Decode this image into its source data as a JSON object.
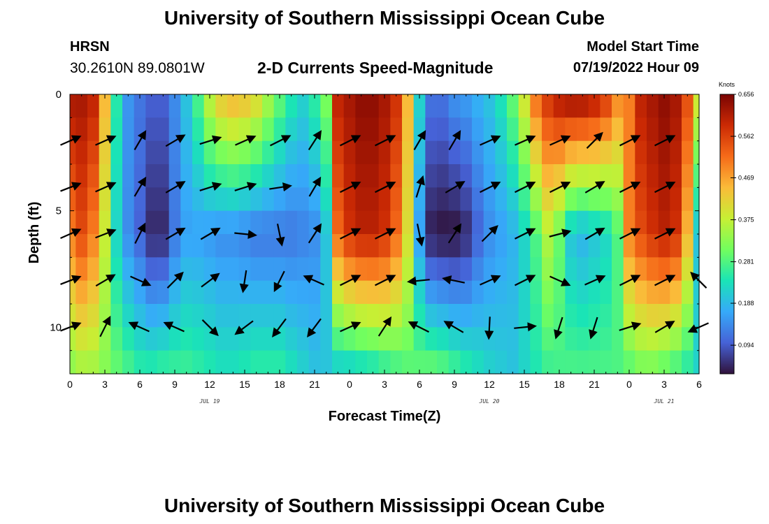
{
  "header": {
    "title": "University of Southern Mississippi Ocean Cube",
    "station": "HRSN",
    "coords": "30.2610N  89.0801W",
    "subtitle": "2-D Currents Speed-Magnitude",
    "model_start_label": "Model Start Time",
    "model_start_value": "07/19/2022 Hour 09"
  },
  "footer": {
    "title": "University of Southern Mississippi Ocean Cube"
  },
  "colorbar": {
    "unit": "Knots",
    "ticks": [
      "0.656",
      "0.562",
      "0.469",
      "0.375",
      "0.281",
      "0.188",
      "0.094"
    ],
    "colors": [
      "#30123b",
      "#4662d7",
      "#36aaf9",
      "#1ae4b6",
      "#72fe5e",
      "#c7ef34",
      "#fabb39",
      "#f66b19",
      "#cb2a04",
      "#7a0403"
    ]
  },
  "chart_data": {
    "type": "heatmap",
    "title": "2-D Currents Speed-Magnitude",
    "xlabel": "Forecast Time(Z)",
    "ylabel": "Depth (ft)",
    "x_tick_labels": [
      "0",
      "3",
      "6",
      "9",
      "12",
      "15",
      "18",
      "21",
      "0",
      "3",
      "6",
      "9",
      "12",
      "15",
      "18",
      "21",
      "0",
      "3",
      "6"
    ],
    "day_labels": [
      {
        "label": "JUL 19",
        "hour": 12
      },
      {
        "label": "JUL 20",
        "hour": 36
      },
      {
        "label": "JUL 21",
        "hour": 51
      }
    ],
    "y_tick_labels": [
      "0",
      "5",
      "10"
    ],
    "y_ticks": [
      0,
      5,
      10
    ],
    "xlim": [
      0,
      54
    ],
    "ylim": [
      0,
      12
    ],
    "color_range": [
      0.03,
      0.656
    ],
    "depth_rows": [
      0,
      1,
      2,
      3,
      4,
      5,
      6,
      7,
      8,
      9,
      10,
      11,
      12
    ],
    "time_columns": [
      0,
      1,
      2,
      3,
      4,
      5,
      6,
      7,
      8,
      9,
      10,
      11,
      12,
      13,
      14,
      15,
      16,
      17,
      18,
      19,
      20,
      21,
      22,
      23,
      24,
      25,
      26,
      27,
      28,
      29,
      30,
      31,
      32,
      33,
      34,
      35,
      36,
      37,
      38,
      39,
      40,
      41,
      42,
      43,
      44,
      45,
      46,
      47,
      48,
      49,
      50,
      51,
      52,
      53,
      54
    ],
    "speed_profiles": [
      {
        "name": "surface",
        "values": [
          0.62,
          0.62,
          0.6,
          0.45,
          0.25,
          0.15,
          0.12,
          0.1,
          0.1,
          0.14,
          0.2,
          0.28,
          0.38,
          0.44,
          0.46,
          0.45,
          0.42,
          0.36,
          0.3,
          0.25,
          0.22,
          0.26,
          0.32,
          0.6,
          0.62,
          0.64,
          0.64,
          0.62,
          0.58,
          0.45,
          0.22,
          0.12,
          0.12,
          0.15,
          0.16,
          0.18,
          0.2,
          0.24,
          0.3,
          0.4,
          0.52,
          0.58,
          0.62,
          0.64,
          0.64,
          0.62,
          0.58,
          0.5,
          0.5,
          0.6,
          0.62,
          0.64,
          0.62,
          0.55,
          0.4
        ]
      },
      {
        "name": "middle",
        "values": [
          0.5,
          0.55,
          0.5,
          0.38,
          0.22,
          0.14,
          0.1,
          0.05,
          0.05,
          0.12,
          0.16,
          0.16,
          0.15,
          0.14,
          0.14,
          0.13,
          0.12,
          0.12,
          0.12,
          0.12,
          0.13,
          0.14,
          0.2,
          0.52,
          0.58,
          0.6,
          0.6,
          0.58,
          0.52,
          0.4,
          0.16,
          0.04,
          0.03,
          0.03,
          0.05,
          0.1,
          0.14,
          0.16,
          0.18,
          0.22,
          0.28,
          0.36,
          0.3,
          0.2,
          0.18,
          0.2,
          0.22,
          0.28,
          0.5,
          0.55,
          0.58,
          0.6,
          0.58,
          0.45,
          0.2
        ]
      },
      {
        "name": "bottom",
        "values": [
          0.32,
          0.34,
          0.34,
          0.32,
          0.3,
          0.28,
          0.26,
          0.26,
          0.27,
          0.27,
          0.27,
          0.26,
          0.25,
          0.24,
          0.24,
          0.25,
          0.26,
          0.26,
          0.26,
          0.24,
          0.22,
          0.2,
          0.2,
          0.2,
          0.2,
          0.21,
          0.22,
          0.24,
          0.26,
          0.28,
          0.3,
          0.31,
          0.3,
          0.28,
          0.26,
          0.24,
          0.22,
          0.21,
          0.2,
          0.22,
          0.24,
          0.26,
          0.27,
          0.28,
          0.28,
          0.28,
          0.28,
          0.28,
          0.28,
          0.3,
          0.3,
          0.28,
          0.26,
          0.24,
          0.22
        ]
      }
    ],
    "vectors": [
      {
        "t": 0,
        "d": 2,
        "u": 0.9,
        "v": 0.4
      },
      {
        "t": 0,
        "d": 4,
        "u": 0.9,
        "v": 0.35
      },
      {
        "t": 0,
        "d": 6,
        "u": 0.9,
        "v": 0.4
      },
      {
        "t": 0,
        "d": 8,
        "u": 0.9,
        "v": 0.35
      },
      {
        "t": 0,
        "d": 10,
        "u": 0.9,
        "v": 0.35
      },
      {
        "t": 3,
        "d": 2,
        "u": 0.9,
        "v": 0.4
      },
      {
        "t": 3,
        "d": 4,
        "u": 0.9,
        "v": 0.4
      },
      {
        "t": 3,
        "d": 6,
        "u": 0.9,
        "v": 0.35
      },
      {
        "t": 3,
        "d": 8,
        "u": 0.85,
        "v": 0.5
      },
      {
        "t": 3,
        "d": 10,
        "u": 0.45,
        "v": 0.9
      },
      {
        "t": 6,
        "d": 2,
        "u": 0.5,
        "v": 0.85
      },
      {
        "t": 6,
        "d": 4,
        "u": 0.5,
        "v": 0.85
      },
      {
        "t": 6,
        "d": 6,
        "u": 0.45,
        "v": 0.9
      },
      {
        "t": 6,
        "d": 8,
        "u": 0.9,
        "v": -0.4
      },
      {
        "t": 6,
        "d": 10,
        "u": -0.9,
        "v": 0.4
      },
      {
        "t": 9,
        "d": 2,
        "u": 0.85,
        "v": 0.5
      },
      {
        "t": 9,
        "d": 4,
        "u": 0.85,
        "v": 0.5
      },
      {
        "t": 9,
        "d": 6,
        "u": 0.85,
        "v": 0.5
      },
      {
        "t": 9,
        "d": 8,
        "u": 0.7,
        "v": 0.7
      },
      {
        "t": 9,
        "d": 10,
        "u": -0.9,
        "v": 0.4
      },
      {
        "t": 12,
        "d": 2,
        "u": 0.95,
        "v": 0.3
      },
      {
        "t": 12,
        "d": 4,
        "u": 0.95,
        "v": 0.3
      },
      {
        "t": 12,
        "d": 6,
        "u": 0.85,
        "v": 0.5
      },
      {
        "t": 12,
        "d": 8,
        "u": 0.8,
        "v": 0.6
      },
      {
        "t": 12,
        "d": 10,
        "u": 0.7,
        "v": -0.7
      },
      {
        "t": 15,
        "d": 2,
        "u": 0.9,
        "v": 0.4
      },
      {
        "t": 15,
        "d": 4,
        "u": 0.95,
        "v": 0.3
      },
      {
        "t": 15,
        "d": 6,
        "u": 0.98,
        "v": -0.1
      },
      {
        "t": 15,
        "d": 8,
        "u": -0.15,
        "v": -0.98
      },
      {
        "t": 15,
        "d": 10,
        "u": -0.8,
        "v": -0.6
      },
      {
        "t": 18,
        "d": 2,
        "u": 0.9,
        "v": 0.45
      },
      {
        "t": 18,
        "d": 4,
        "u": 0.98,
        "v": 0.15
      },
      {
        "t": 18,
        "d": 6,
        "u": 0.2,
        "v": -0.98
      },
      {
        "t": 18,
        "d": 8,
        "u": -0.45,
        "v": -0.9
      },
      {
        "t": 18,
        "d": 10,
        "u": -0.6,
        "v": -0.8
      },
      {
        "t": 21,
        "d": 2,
        "u": 0.55,
        "v": 0.85
      },
      {
        "t": 21,
        "d": 4,
        "u": 0.5,
        "v": 0.85
      },
      {
        "t": 21,
        "d": 6,
        "u": 0.55,
        "v": 0.85
      },
      {
        "t": 21,
        "d": 8,
        "u": -0.9,
        "v": 0.4
      },
      {
        "t": 21,
        "d": 10,
        "u": -0.6,
        "v": -0.8
      },
      {
        "t": 24,
        "d": 2,
        "u": 0.9,
        "v": 0.45
      },
      {
        "t": 24,
        "d": 4,
        "u": 0.9,
        "v": 0.45
      },
      {
        "t": 24,
        "d": 6,
        "u": 0.9,
        "v": 0.45
      },
      {
        "t": 24,
        "d": 8,
        "u": 0.9,
        "v": 0.45
      },
      {
        "t": 24,
        "d": 10,
        "u": 0.9,
        "v": 0.4
      },
      {
        "t": 27,
        "d": 2,
        "u": 0.9,
        "v": 0.45
      },
      {
        "t": 27,
        "d": 4,
        "u": 0.9,
        "v": 0.45
      },
      {
        "t": 27,
        "d": 6,
        "u": 0.9,
        "v": 0.45
      },
      {
        "t": 27,
        "d": 8,
        "u": 0.9,
        "v": 0.45
      },
      {
        "t": 27,
        "d": 10,
        "u": 0.55,
        "v": 0.85
      },
      {
        "t": 30,
        "d": 2,
        "u": 0.5,
        "v": 0.85
      },
      {
        "t": 30,
        "d": 4,
        "u": 0.3,
        "v": 0.95
      },
      {
        "t": 30,
        "d": 6,
        "u": 0.2,
        "v": -0.98
      },
      {
        "t": 30,
        "d": 8,
        "u": -0.98,
        "v": -0.1
      },
      {
        "t": 30,
        "d": 10,
        "u": -0.9,
        "v": 0.45
      },
      {
        "t": 33,
        "d": 2,
        "u": 0.5,
        "v": 0.85
      },
      {
        "t": 33,
        "d": 4,
        "u": 0.85,
        "v": 0.5
      },
      {
        "t": 33,
        "d": 6,
        "u": 0.55,
        "v": 0.85
      },
      {
        "t": 33,
        "d": 8,
        "u": -0.98,
        "v": 0.2
      },
      {
        "t": 33,
        "d": 10,
        "u": -0.85,
        "v": 0.5
      },
      {
        "t": 36,
        "d": 2,
        "u": 0.9,
        "v": 0.4
      },
      {
        "t": 36,
        "d": 4,
        "u": 0.9,
        "v": 0.45
      },
      {
        "t": 36,
        "d": 6,
        "u": 0.7,
        "v": 0.7
      },
      {
        "t": 36,
        "d": 8,
        "u": 0.9,
        "v": 0.4
      },
      {
        "t": 36,
        "d": 10,
        "u": -0.05,
        "v": -1.0
      },
      {
        "t": 39,
        "d": 2,
        "u": 0.9,
        "v": 0.4
      },
      {
        "t": 39,
        "d": 4,
        "u": 0.9,
        "v": 0.45
      },
      {
        "t": 39,
        "d": 6,
        "u": 0.9,
        "v": 0.45
      },
      {
        "t": 39,
        "d": 8,
        "u": 0.9,
        "v": 0.45
      },
      {
        "t": 39,
        "d": 10,
        "u": 0.98,
        "v": 0.1
      },
      {
        "t": 42,
        "d": 2,
        "u": 0.9,
        "v": 0.4
      },
      {
        "t": 42,
        "d": 4,
        "u": 0.9,
        "v": 0.45
      },
      {
        "t": 42,
        "d": 6,
        "u": 0.95,
        "v": 0.25
      },
      {
        "t": 42,
        "d": 8,
        "u": 0.9,
        "v": -0.4
      },
      {
        "t": 42,
        "d": 10,
        "u": -0.3,
        "v": -0.95
      },
      {
        "t": 45,
        "d": 2,
        "u": 0.7,
        "v": 0.7
      },
      {
        "t": 45,
        "d": 4,
        "u": 0.85,
        "v": 0.5
      },
      {
        "t": 45,
        "d": 6,
        "u": 0.85,
        "v": 0.5
      },
      {
        "t": 45,
        "d": 8,
        "u": 0.9,
        "v": 0.4
      },
      {
        "t": 45,
        "d": 10,
        "u": -0.3,
        "v": -0.95
      },
      {
        "t": 48,
        "d": 2,
        "u": 0.9,
        "v": 0.45
      },
      {
        "t": 48,
        "d": 4,
        "u": 0.9,
        "v": 0.45
      },
      {
        "t": 48,
        "d": 6,
        "u": 0.9,
        "v": 0.45
      },
      {
        "t": 48,
        "d": 8,
        "u": 0.9,
        "v": 0.45
      },
      {
        "t": 48,
        "d": 10,
        "u": 0.95,
        "v": 0.3
      },
      {
        "t": 51,
        "d": 2,
        "u": 0.9,
        "v": 0.45
      },
      {
        "t": 51,
        "d": 4,
        "u": 0.9,
        "v": 0.45
      },
      {
        "t": 51,
        "d": 6,
        "u": 0.9,
        "v": 0.45
      },
      {
        "t": 51,
        "d": 8,
        "u": 0.9,
        "v": 0.45
      },
      {
        "t": 51,
        "d": 10,
        "u": 0.85,
        "v": 0.5
      },
      {
        "t": 54,
        "d": 8,
        "u": -0.7,
        "v": 0.7
      },
      {
        "t": 54,
        "d": 10,
        "u": -0.9,
        "v": -0.4
      }
    ]
  }
}
